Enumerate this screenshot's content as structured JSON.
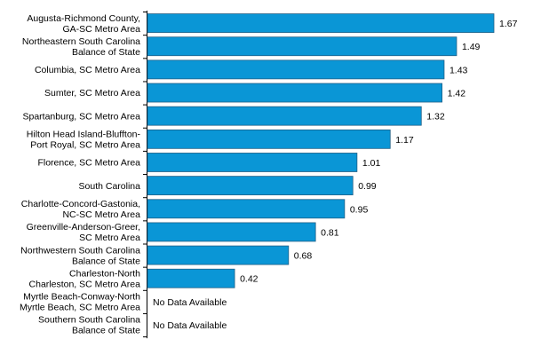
{
  "chart_data": {
    "type": "bar",
    "orientation": "horizontal",
    "categories": [
      [
        "Augusta-Richmond County,",
        "GA-SC Metro Area"
      ],
      [
        "Northeastern South Carolina",
        "Balance of State"
      ],
      [
        "Columbia, SC Metro Area"
      ],
      [
        "Sumter, SC Metro Area"
      ],
      [
        "Spartanburg, SC Metro Area"
      ],
      [
        "Hilton Head Island-Bluffton-",
        "Port Royal, SC Metro Area"
      ],
      [
        "Florence, SC Metro Area"
      ],
      [
        "South Carolina"
      ],
      [
        "Charlotte-Concord-Gastonia,",
        "NC-SC Metro Area"
      ],
      [
        "Greenville-Anderson-Greer,",
        "SC Metro Area"
      ],
      [
        "Northwestern South Carolina",
        "Balance of State"
      ],
      [
        "Charleston-North",
        "Charleston, SC Metro Area"
      ],
      [
        "Myrtle Beach-Conway-North",
        "Myrtle Beach, SC Metro Area"
      ],
      [
        "Southern South Carolina",
        "Balance of State"
      ]
    ],
    "values": [
      1.67,
      1.49,
      1.43,
      1.42,
      1.32,
      1.17,
      1.01,
      0.99,
      0.95,
      0.81,
      0.68,
      0.42,
      null,
      null
    ],
    "value_labels": [
      "1.67",
      "1.49",
      "1.43",
      "1.42",
      "1.32",
      "1.17",
      "1.01",
      "0.99",
      "0.95",
      "0.81",
      "0.68",
      "0.42",
      "No Data Available",
      "No Data Available"
    ],
    "xlim": [
      0,
      1.67
    ],
    "bar_color": "#0a96d6",
    "bar_border_color": "#1f5f86",
    "grid": false,
    "legend": false
  }
}
